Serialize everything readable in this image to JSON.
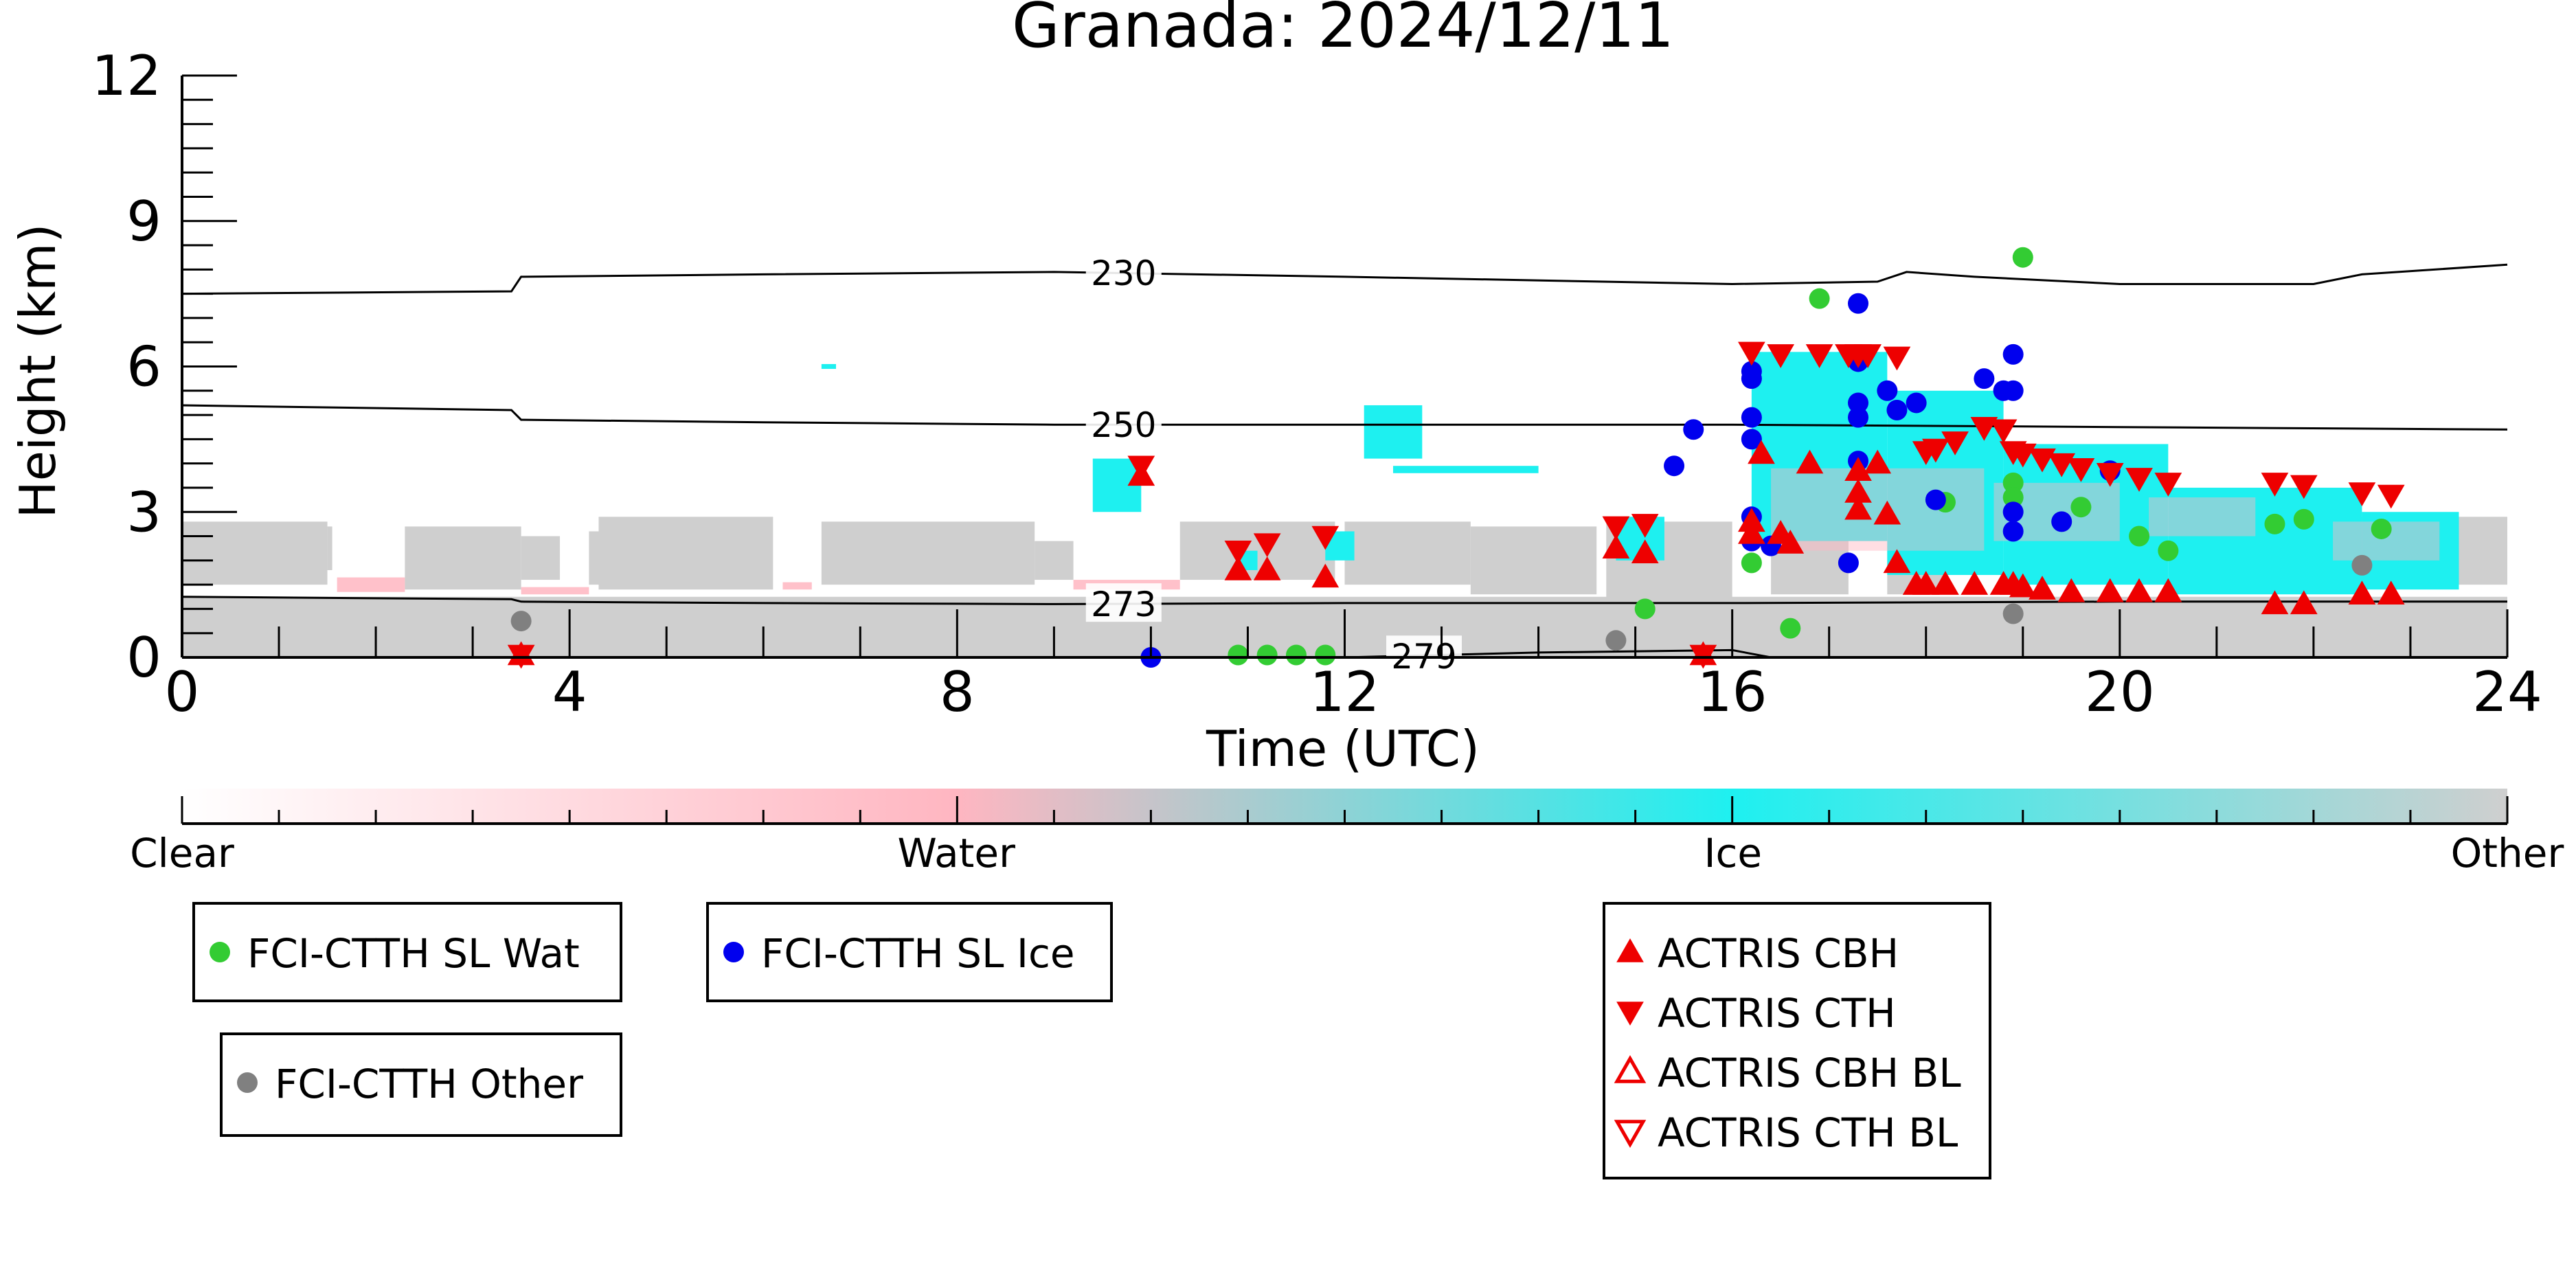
{
  "chart_data": {
    "type": "scatter",
    "title": "Granada: 2024/12/11",
    "xlabel": "Time (UTC)",
    "ylabel": "Height (km)",
    "xlim": [
      0,
      24
    ],
    "ylim": [
      0,
      12
    ],
    "xticks": [
      0,
      4,
      8,
      12,
      16,
      20,
      24
    ],
    "yticks": [
      0,
      3,
      6,
      9,
      12
    ],
    "colorbar": {
      "labels": [
        {
          "text": "Clear",
          "frac": 0.0
        },
        {
          "text": "Water",
          "frac": 0.333
        },
        {
          "text": "Ice",
          "frac": 0.667
        },
        {
          "text": "Other",
          "frac": 1.0
        }
      ],
      "colors": [
        "#ffffff",
        "#ffb6c1",
        "#b6c8cc",
        "#1ef0f0",
        "#cfcfcf"
      ]
    },
    "contours": [
      {
        "label": "230",
        "label_x": 9.4,
        "points": [
          [
            0,
            7.5
          ],
          [
            3.4,
            7.55
          ],
          [
            3.5,
            7.85
          ],
          [
            6,
            7.9
          ],
          [
            9,
            7.95
          ],
          [
            12,
            7.85
          ],
          [
            16,
            7.7
          ],
          [
            17.5,
            7.75
          ],
          [
            17.8,
            7.95
          ],
          [
            18.5,
            7.85
          ],
          [
            20,
            7.7
          ],
          [
            22,
            7.7
          ],
          [
            22.5,
            7.9
          ],
          [
            24,
            8.1
          ]
        ]
      },
      {
        "label": "250",
        "label_x": 9.4,
        "points": [
          [
            0,
            5.2
          ],
          [
            3.4,
            5.1
          ],
          [
            3.5,
            4.9
          ],
          [
            6,
            4.85
          ],
          [
            9,
            4.8
          ],
          [
            12,
            4.8
          ],
          [
            16,
            4.8
          ],
          [
            20,
            4.75
          ],
          [
            24,
            4.7
          ]
        ]
      },
      {
        "label": "273",
        "label_x": 9.4,
        "points": [
          [
            0,
            1.25
          ],
          [
            3.4,
            1.2
          ],
          [
            3.5,
            1.15
          ],
          [
            6,
            1.12
          ],
          [
            9,
            1.1
          ],
          [
            12,
            1.12
          ],
          [
            16,
            1.12
          ],
          [
            20,
            1.15
          ],
          [
            24,
            1.15
          ]
        ]
      },
      {
        "label": "279",
        "label_x": 12.5,
        "points": [
          [
            12,
            0
          ],
          [
            14,
            0.1
          ],
          [
            16,
            0.15
          ],
          [
            16.4,
            0.0
          ]
        ]
      }
    ],
    "series": [
      {
        "name": "FCI-CTTH SL Wat",
        "marker": "circle",
        "color": "#33cc33",
        "points": [
          [
            10.9,
            0.05
          ],
          [
            11.2,
            0.05
          ],
          [
            11.5,
            0.05
          ],
          [
            11.8,
            0.05
          ],
          [
            15.1,
            1.0
          ],
          [
            16.2,
            1.95
          ],
          [
            16.6,
            0.6
          ],
          [
            16.9,
            7.4
          ],
          [
            18.2,
            3.2
          ],
          [
            18.9,
            3.6
          ],
          [
            18.9,
            3.3
          ],
          [
            19.0,
            8.25
          ],
          [
            19.6,
            3.1
          ],
          [
            20.2,
            2.5
          ],
          [
            20.5,
            2.2
          ],
          [
            21.6,
            2.75
          ],
          [
            21.9,
            2.85
          ],
          [
            22.7,
            2.65
          ]
        ]
      },
      {
        "name": "FCI-CTTH SL Ice",
        "marker": "circle",
        "color": "#0000ee",
        "points": [
          [
            10.0,
            0.0
          ],
          [
            15.4,
            3.95
          ],
          [
            15.6,
            4.7
          ],
          [
            16.2,
            5.9
          ],
          [
            16.2,
            5.75
          ],
          [
            16.2,
            4.95
          ],
          [
            16.2,
            4.5
          ],
          [
            16.2,
            2.9
          ],
          [
            16.2,
            2.4
          ],
          [
            16.4,
            2.3
          ],
          [
            17.2,
            1.95
          ],
          [
            17.3,
            7.3
          ],
          [
            17.3,
            6.1
          ],
          [
            17.3,
            5.25
          ],
          [
            17.3,
            4.95
          ],
          [
            17.3,
            4.05
          ],
          [
            17.6,
            5.5
          ],
          [
            17.7,
            5.1
          ],
          [
            17.9,
            5.25
          ],
          [
            18.1,
            3.25
          ],
          [
            18.6,
            5.75
          ],
          [
            18.8,
            5.5
          ],
          [
            18.9,
            5.5
          ],
          [
            18.9,
            6.25
          ],
          [
            18.9,
            3.0
          ],
          [
            18.9,
            2.6
          ],
          [
            19.4,
            2.8
          ],
          [
            19.9,
            3.85
          ]
        ]
      },
      {
        "name": "FCI-CTTH Other",
        "marker": "circle",
        "color": "#808080",
        "points": [
          [
            3.5,
            0.75
          ],
          [
            14.8,
            0.35
          ],
          [
            18.9,
            0.9
          ],
          [
            22.5,
            1.9
          ]
        ]
      },
      {
        "name": "ACTRIS CBH",
        "marker": "triangle-up",
        "color": "#ee0000",
        "points": [
          [
            3.5,
            0.05
          ],
          [
            9.9,
            3.75
          ],
          [
            10.9,
            1.8
          ],
          [
            11.2,
            1.8
          ],
          [
            11.8,
            1.65
          ],
          [
            14.8,
            2.25
          ],
          [
            15.1,
            2.15
          ],
          [
            15.7,
            0.05
          ],
          [
            16.2,
            2.8
          ],
          [
            16.2,
            2.55
          ],
          [
            16.3,
            4.2
          ],
          [
            16.5,
            2.55
          ],
          [
            16.6,
            2.35
          ],
          [
            16.8,
            4.0
          ],
          [
            17.3,
            3.85
          ],
          [
            17.3,
            3.4
          ],
          [
            17.3,
            3.05
          ],
          [
            17.5,
            4.0
          ],
          [
            17.6,
            2.95
          ],
          [
            17.7,
            1.95
          ],
          [
            17.9,
            1.5
          ],
          [
            18.0,
            1.5
          ],
          [
            18.2,
            1.5
          ],
          [
            18.5,
            1.5
          ],
          [
            18.8,
            1.5
          ],
          [
            18.9,
            1.5
          ],
          [
            19.0,
            1.45
          ],
          [
            19.2,
            1.4
          ],
          [
            19.5,
            1.35
          ],
          [
            19.9,
            1.35
          ],
          [
            20.2,
            1.35
          ],
          [
            20.5,
            1.35
          ],
          [
            21.6,
            1.1
          ],
          [
            21.9,
            1.1
          ],
          [
            22.5,
            1.3
          ],
          [
            22.8,
            1.3
          ]
        ]
      },
      {
        "name": "ACTRIS CTH",
        "marker": "triangle-down",
        "color": "#ee0000",
        "points": [
          [
            3.5,
            0.05
          ],
          [
            9.9,
            3.95
          ],
          [
            10.9,
            2.2
          ],
          [
            11.2,
            2.35
          ],
          [
            11.8,
            2.5
          ],
          [
            14.8,
            2.7
          ],
          [
            15.1,
            2.75
          ],
          [
            15.7,
            0.05
          ],
          [
            16.2,
            6.3
          ],
          [
            16.5,
            6.25
          ],
          [
            16.9,
            6.25
          ],
          [
            17.2,
            6.25
          ],
          [
            17.3,
            6.25
          ],
          [
            17.4,
            6.25
          ],
          [
            17.7,
            6.2
          ],
          [
            18.0,
            4.25
          ],
          [
            18.1,
            4.3
          ],
          [
            18.3,
            4.45
          ],
          [
            18.6,
            4.75
          ],
          [
            18.8,
            4.7
          ],
          [
            18.9,
            4.25
          ],
          [
            19.0,
            4.2
          ],
          [
            19.2,
            4.1
          ],
          [
            19.4,
            4.0
          ],
          [
            19.6,
            3.9
          ],
          [
            19.9,
            3.8
          ],
          [
            20.2,
            3.7
          ],
          [
            20.5,
            3.6
          ],
          [
            21.6,
            3.6
          ],
          [
            21.9,
            3.55
          ],
          [
            22.5,
            3.4
          ],
          [
            22.8,
            3.35
          ]
        ]
      },
      {
        "name": "ACTRIS CBH BL",
        "marker": "triangle-up-open",
        "color": "#ee0000",
        "points": []
      },
      {
        "name": "ACTRIS CTH BL",
        "marker": "triangle-down-open",
        "color": "#ee0000",
        "points": []
      }
    ],
    "legends": [
      {
        "items": [
          "FCI-CTTH SL Wat"
        ]
      },
      {
        "items": [
          "FCI-CTTH SL Ice"
        ]
      },
      {
        "items": [
          "FCI-CTTH Other"
        ]
      },
      {
        "items": [
          "ACTRIS CBH",
          "ACTRIS CTH",
          "ACTRIS CBH BL",
          "ACTRIS CTH BL"
        ]
      }
    ]
  }
}
